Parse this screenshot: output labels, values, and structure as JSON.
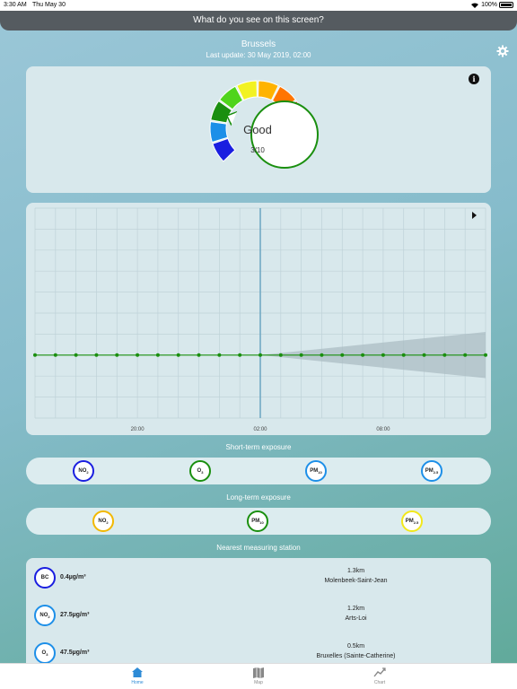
{
  "status_bar": {
    "time": "3:30 AM",
    "date": "Thu May 30",
    "battery": "100%"
  },
  "header": {
    "title": "What do you see on this screen?"
  },
  "location": {
    "city": "Brussels",
    "last_update": "Last update: 30 May 2019, 02:00"
  },
  "gauge": {
    "label": "Good",
    "score": "3/10",
    "segment_colors": [
      "#1a1ee0",
      "#1d8fe8",
      "#1a8f0f",
      "#4fd41c",
      "#f2f222",
      "#ffb300",
      "#ff7500",
      "#ff1a1a",
      "#b50f0f",
      "#6e0000"
    ],
    "active_index": 2
  },
  "chart_data": {
    "type": "line",
    "x_tick_labels": [
      "20:00",
      "02:00",
      "08:00"
    ],
    "series": [
      {
        "values": [
          3,
          3,
          3,
          3,
          3,
          3,
          3,
          3,
          3,
          3,
          3,
          3,
          3,
          3,
          3,
          3,
          3,
          3,
          3,
          3,
          3,
          3,
          3
        ]
      }
    ],
    "current_index": 11,
    "forecast_band": {
      "start_index": 11,
      "lower_end": 1.9,
      "upper_end": 4.1
    },
    "ylim": [
      0,
      10
    ],
    "grid": true,
    "line_color": "#1a8f0f",
    "band_color": "#a9bbc2"
  },
  "short_term": {
    "title": "Short-term exposure",
    "items": [
      {
        "base": "NO",
        "sub": "2",
        "color": "#1a1ee0"
      },
      {
        "base": "O",
        "sub": "3",
        "color": "#1a8f0f"
      },
      {
        "base": "PM",
        "sub": "10",
        "color": "#1d8fe8"
      },
      {
        "base": "PM",
        "sub": "2.5",
        "color": "#1d8fe8"
      }
    ]
  },
  "long_term": {
    "title": "Long-term exposure",
    "items": [
      {
        "base": "NO",
        "sub": "2",
        "color": "#f2b800"
      },
      {
        "base": "PM",
        "sub": "10",
        "color": "#1a8f0f"
      },
      {
        "base": "PM",
        "sub": "2.5",
        "color": "#f2e81a"
      }
    ]
  },
  "nearest": {
    "title": "Nearest measuring station",
    "stations": [
      {
        "base": "BC",
        "sub": "",
        "color": "#1a1ee0",
        "value": "0.4µg/m³",
        "distance": "1.3km",
        "name": "Molenbeek-Saint-Jean"
      },
      {
        "base": "NO",
        "sub": "2",
        "color": "#1d8fe8",
        "value": "27.5µg/m³",
        "distance": "1.2km",
        "name": "Arts-Loi"
      },
      {
        "base": "O",
        "sub": "3",
        "color": "#1d8fe8",
        "value": "47.5µg/m³",
        "distance": "0.5km",
        "name": "Bruxelles (Sainte-Catherine)"
      }
    ]
  },
  "tabs": [
    {
      "label": "Home",
      "icon": "home-icon",
      "active": true
    },
    {
      "label": "Map",
      "icon": "map-icon",
      "active": false
    },
    {
      "label": "Chart",
      "icon": "chart-icon",
      "active": false
    }
  ]
}
